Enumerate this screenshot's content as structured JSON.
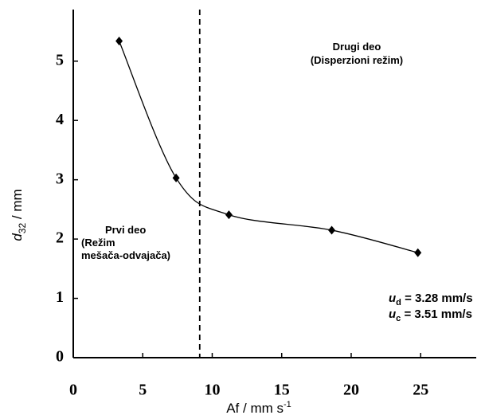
{
  "chart_data": {
    "type": "scatter",
    "x": [
      3.3,
      7.4,
      11.2,
      18.6,
      24.8
    ],
    "series": [
      {
        "color": "#000000",
        "values": [
          5.34,
          3.03,
          2.41,
          2.15,
          1.77
        ]
      }
    ],
    "xlim": [
      0,
      29
    ],
    "ylim": [
      0,
      5.87
    ],
    "xticks": [
      0,
      5,
      10,
      15,
      20,
      25
    ],
    "yticks": [
      0,
      1,
      2,
      3,
      4,
      5
    ],
    "divider_x": 9.1,
    "x_label": {
      "text": "Af / mm s",
      "sup": "-1"
    },
    "y_label": {
      "main": "d",
      "sub": "32",
      "rest": " / mm"
    },
    "region_right": [
      "Drugi deo",
      "(Disperzioni režim)"
    ],
    "region_left": [
      "Prvi deo",
      "(Režim",
      "mešača-odvajača)"
    ],
    "velocities": [
      {
        "sym": "u",
        "sub": "d",
        "text": " = 3.28 mm/s"
      },
      {
        "sym": "u",
        "sub": "c",
        "text": " = 3.51 mm/s"
      }
    ]
  }
}
